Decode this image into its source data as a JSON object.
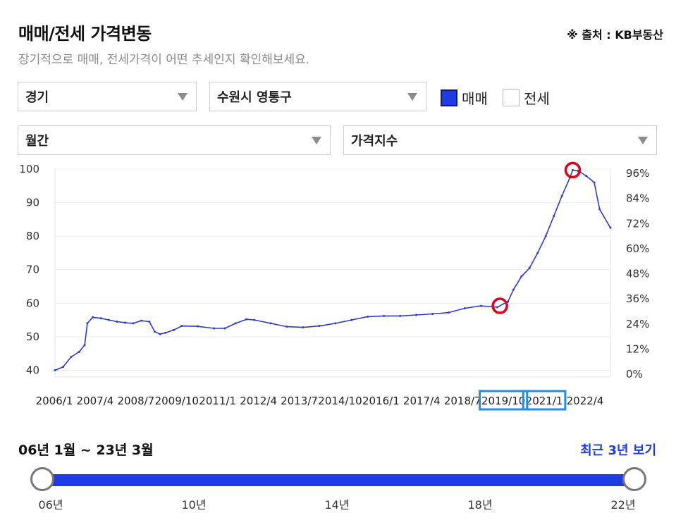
{
  "header": {
    "title": "매매/전세 가격변동",
    "source": "※ 출처 : KB부동산",
    "subtitle": "장기적으로 매매, 전세가격이 어떤 추세인지 확인해보세요."
  },
  "filters": {
    "region": "경기",
    "district": "수원시 영통구",
    "period": "월간",
    "metric": "가격지수"
  },
  "toggles": {
    "sale": {
      "label": "매매",
      "checked": true
    },
    "jeonse": {
      "label": "전세",
      "checked": false
    }
  },
  "chart_data": {
    "type": "line",
    "title": "",
    "xlabel": "",
    "ylabel": "",
    "x_tick_labels": [
      "2006/1",
      "2007/4",
      "2008/7",
      "2009/10",
      "2011/1",
      "2012/4",
      "2013/7",
      "2014/10",
      "2016/1",
      "2017/4",
      "2018/7",
      "2019/10",
      "2021/1",
      "2022/4"
    ],
    "y_ticks_left": [
      40,
      50,
      60,
      70,
      80,
      90,
      100
    ],
    "y_ticks_right": [
      "0%",
      "12%",
      "24%",
      "36%",
      "48%",
      "60%",
      "72%",
      "84%",
      "96%"
    ],
    "ylim_left": [
      38,
      100
    ],
    "ylim_right": [
      0,
      96
    ],
    "grid": true,
    "x_start": "2006/1",
    "x_end": "2023/3",
    "series": [
      {
        "name": "매매",
        "color": "#2b3ccc",
        "points": [
          [
            "2006/1",
            40.0
          ],
          [
            "2006/4",
            41.0
          ],
          [
            "2006/7",
            44.0
          ],
          [
            "2006/10",
            45.5
          ],
          [
            "2006/12",
            47.5
          ],
          [
            "2007/1",
            54.0
          ],
          [
            "2007/3",
            55.8
          ],
          [
            "2007/6",
            55.5
          ],
          [
            "2007/9",
            55.0
          ],
          [
            "2007/12",
            54.5
          ],
          [
            "2008/3",
            54.2
          ],
          [
            "2008/6",
            54.0
          ],
          [
            "2008/9",
            54.8
          ],
          [
            "2008/12",
            54.5
          ],
          [
            "2009/2",
            51.5
          ],
          [
            "2009/4",
            50.8
          ],
          [
            "2009/6",
            51.2
          ],
          [
            "2009/9",
            52.0
          ],
          [
            "2009/12",
            53.2
          ],
          [
            "2010/6",
            53.1
          ],
          [
            "2010/12",
            52.5
          ],
          [
            "2011/4",
            52.5
          ],
          [
            "2011/8",
            54.0
          ],
          [
            "2011/12",
            55.2
          ],
          [
            "2012/3",
            55.0
          ],
          [
            "2012/9",
            54.0
          ],
          [
            "2013/3",
            53.0
          ],
          [
            "2013/9",
            52.8
          ],
          [
            "2014/3",
            53.2
          ],
          [
            "2014/9",
            54.0
          ],
          [
            "2015/3",
            55.0
          ],
          [
            "2015/9",
            56.0
          ],
          [
            "2016/3",
            56.2
          ],
          [
            "2016/9",
            56.2
          ],
          [
            "2017/3",
            56.5
          ],
          [
            "2017/9",
            56.8
          ],
          [
            "2018/3",
            57.2
          ],
          [
            "2018/9",
            58.5
          ],
          [
            "2019/3",
            59.2
          ],
          [
            "2019/9",
            58.8
          ],
          [
            "2020/1",
            60.5
          ],
          [
            "2020/3",
            64.0
          ],
          [
            "2020/6",
            68.0
          ],
          [
            "2020/9",
            70.5
          ],
          [
            "2020/12",
            75.0
          ],
          [
            "2021/3",
            80.0
          ],
          [
            "2021/6",
            86.0
          ],
          [
            "2021/9",
            92.0
          ],
          [
            "2021/12",
            97.5
          ],
          [
            "2022/1",
            99.7
          ],
          [
            "2022/3",
            99.5
          ],
          [
            "2022/6",
            98.0
          ],
          [
            "2022/9",
            96.0
          ],
          [
            "2022/11",
            88.0
          ],
          [
            "2023/3",
            82.5
          ]
        ]
      }
    ],
    "highlighted_points": [
      "2019/10",
      "2022/1"
    ],
    "highlighted_x_labels": [
      "2019/10",
      "2021/1"
    ]
  },
  "range": {
    "label": "06년 1월 ~ 23년 3월",
    "recent_link": "최근 3년 보기",
    "slider_start": 0.0,
    "slider_end": 1.0,
    "tick_labels": [
      "06년",
      "10년",
      "14년",
      "18년",
      "22년"
    ]
  },
  "colors": {
    "accent": "#1f3be3",
    "highlight_circle": "#e0001a",
    "highlight_box": "#1e8ee6"
  }
}
